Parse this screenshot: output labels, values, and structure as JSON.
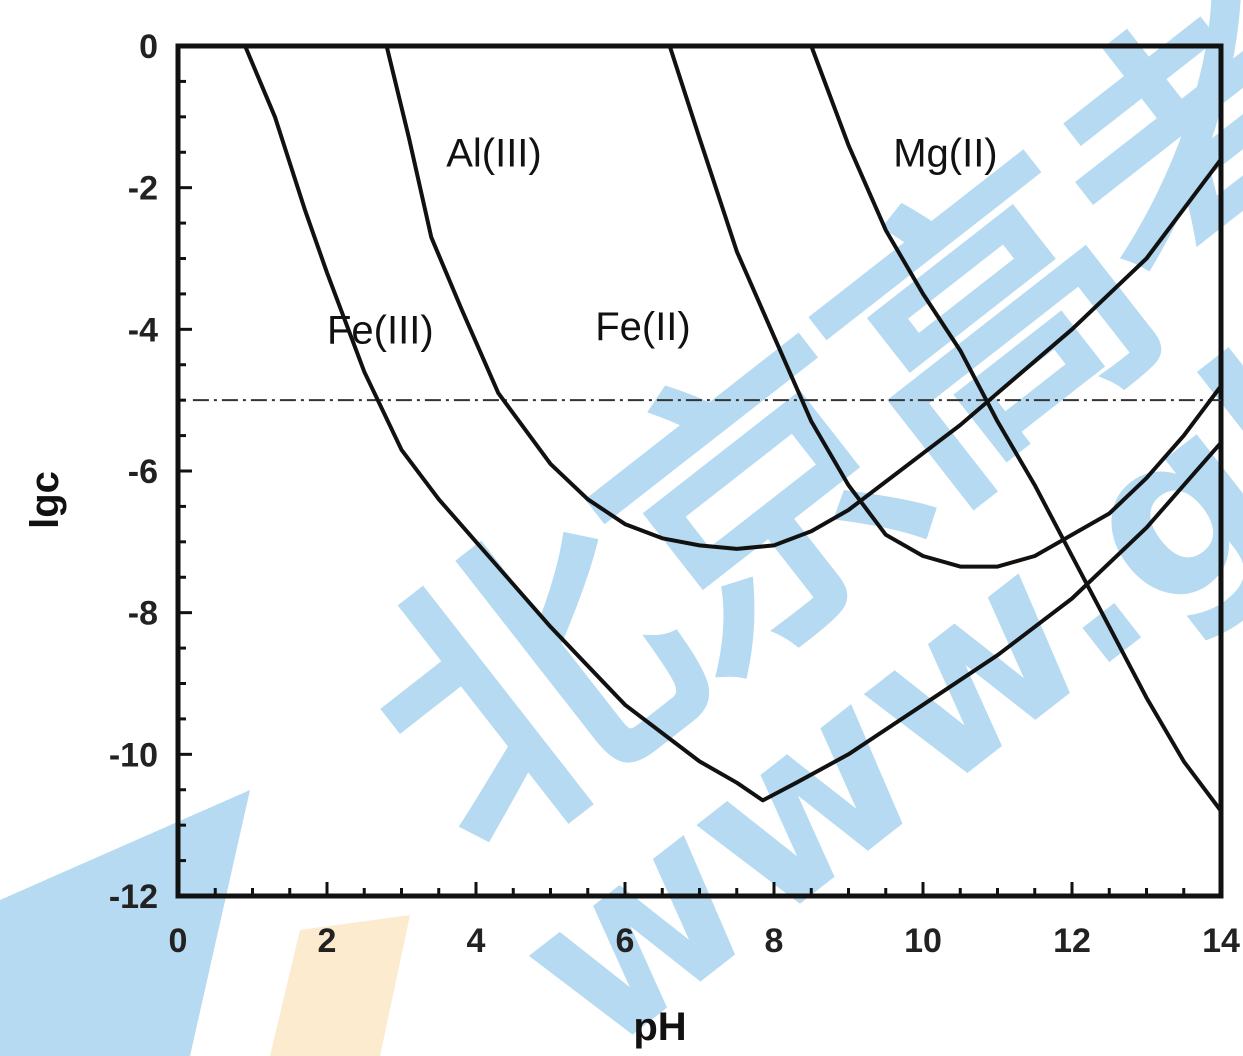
{
  "chart_data": {
    "type": "line",
    "title": "",
    "xlabel": "pH",
    "ylabel": "lgc",
    "xlim": [
      0,
      14
    ],
    "ylim": [
      -12,
      0
    ],
    "xticks": [
      0,
      2,
      4,
      6,
      8,
      10,
      12,
      14
    ],
    "yticks": [
      0,
      -2,
      -4,
      -6,
      -8,
      -10,
      -12
    ],
    "xtick_labels": [
      "0",
      "2",
      "4",
      "6",
      "8",
      "10",
      "12",
      "14"
    ],
    "ytick_labels": [
      "0",
      "-2",
      "-4",
      "-6",
      "-8",
      "-10",
      "-12"
    ],
    "grid": false,
    "reference_line": {
      "y": -5,
      "style": "dash-dot"
    },
    "series": [
      {
        "name": "Fe(III)",
        "points": [
          [
            0.9,
            0
          ],
          [
            1.3,
            -1
          ],
          [
            1.7,
            -2.3
          ],
          [
            2.0,
            -3.2
          ],
          [
            2.5,
            -4.6
          ],
          [
            3,
            -5.7
          ],
          [
            3.5,
            -6.4
          ],
          [
            4,
            -7.0
          ],
          [
            5,
            -8.2
          ],
          [
            6,
            -9.3
          ],
          [
            7,
            -10.1
          ],
          [
            7.5,
            -10.4
          ],
          [
            7.85,
            -10.65
          ],
          [
            8.3,
            -10.4
          ],
          [
            9,
            -10.0
          ],
          [
            10,
            -9.3
          ],
          [
            11,
            -8.6
          ],
          [
            12,
            -7.8
          ],
          [
            13,
            -6.8
          ],
          [
            14,
            -5.6
          ]
        ]
      },
      {
        "name": "Al(III)",
        "points": [
          [
            2.8,
            0
          ],
          [
            3.1,
            -1.3
          ],
          [
            3.4,
            -2.7
          ],
          [
            3.8,
            -3.7
          ],
          [
            4.3,
            -4.9
          ],
          [
            5,
            -5.9
          ],
          [
            5.5,
            -6.4
          ],
          [
            6,
            -6.75
          ],
          [
            6.5,
            -6.95
          ],
          [
            7,
            -7.05
          ],
          [
            7.5,
            -7.1
          ],
          [
            8,
            -7.05
          ],
          [
            8.5,
            -6.85
          ],
          [
            9,
            -6.55
          ],
          [
            9.5,
            -6.15
          ],
          [
            10,
            -5.75
          ],
          [
            10.5,
            -5.35
          ],
          [
            11,
            -4.9
          ],
          [
            11.5,
            -4.45
          ],
          [
            12,
            -4.0
          ],
          [
            13,
            -3.0
          ],
          [
            14,
            -1.6
          ]
        ]
      },
      {
        "name": "Fe(II)",
        "points": [
          [
            6.6,
            0
          ],
          [
            7.0,
            -1.3
          ],
          [
            7.5,
            -2.9
          ],
          [
            8,
            -4.1
          ],
          [
            8.5,
            -5.3
          ],
          [
            9,
            -6.2
          ],
          [
            9.5,
            -6.9
          ],
          [
            10,
            -7.2
          ],
          [
            10.5,
            -7.35
          ],
          [
            11,
            -7.35
          ],
          [
            11.5,
            -7.2
          ],
          [
            12,
            -6.9
          ],
          [
            12.5,
            -6.6
          ],
          [
            13,
            -6.1
          ],
          [
            13.5,
            -5.5
          ],
          [
            14,
            -4.8
          ]
        ]
      },
      {
        "name": "Mg(II)",
        "points": [
          [
            8.5,
            0
          ],
          [
            9,
            -1.4
          ],
          [
            9.5,
            -2.6
          ],
          [
            10,
            -3.5
          ],
          [
            10.5,
            -4.3
          ],
          [
            11,
            -5.3
          ],
          [
            11.5,
            -6.2
          ],
          [
            12,
            -7.2
          ],
          [
            12.5,
            -8.2
          ],
          [
            13,
            -9.2
          ],
          [
            13.5,
            -10.1
          ],
          [
            14,
            -10.8
          ]
        ]
      }
    ],
    "series_labels": [
      {
        "text": "Fe(III)",
        "x": 2.0,
        "y": -4.0
      },
      {
        "text": "Al(III)",
        "x": 3.6,
        "y": -1.5
      },
      {
        "text": "Fe(II)",
        "x": 5.6,
        "y": -3.95
      },
      {
        "text": "Mg(II)",
        "x": 9.6,
        "y": -1.5
      }
    ]
  },
  "watermark": {
    "chars": [
      "北",
      "京",
      "高",
      "考"
    ],
    "url_fragment": "www.gk",
    "color": "#2b95d8",
    "accent_color": "#f7c673"
  }
}
